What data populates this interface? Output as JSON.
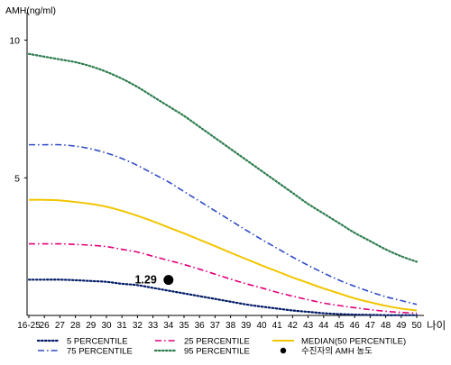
{
  "chart_data": {
    "type": "line",
    "ylabel": "AMH(ng/ml)",
    "xlabel": "나이",
    "ylim": [
      0,
      11
    ],
    "yticks": [
      5,
      10
    ],
    "grid": false,
    "legend_position": "bottom",
    "categories": [
      "16-25",
      "26",
      "27",
      "28",
      "29",
      "30",
      "31",
      "32",
      "33",
      "34",
      "35",
      "36",
      "37",
      "38",
      "39",
      "40",
      "41",
      "42",
      "43",
      "44",
      "45",
      "46",
      "47",
      "48",
      "49",
      "50"
    ],
    "series": [
      {
        "name": "5 PERCENTILE",
        "color": "#001a66",
        "dash": "dotted",
        "values": [
          1.3,
          1.3,
          1.3,
          1.28,
          1.25,
          1.22,
          1.15,
          1.1,
          1.0,
          0.9,
          0.8,
          0.7,
          0.6,
          0.5,
          0.4,
          0.32,
          0.25,
          0.18,
          0.13,
          0.08,
          0.05,
          0.03,
          0.02,
          0.01,
          0.01,
          0.01
        ]
      },
      {
        "name": "25 PERCENTILE",
        "color": "#e0007a",
        "dash": "dashdot",
        "values": [
          2.6,
          2.6,
          2.6,
          2.58,
          2.55,
          2.5,
          2.4,
          2.3,
          2.15,
          2.0,
          1.85,
          1.68,
          1.5,
          1.32,
          1.15,
          1.0,
          0.84,
          0.7,
          0.57,
          0.45,
          0.36,
          0.28,
          0.21,
          0.15,
          0.11,
          0.08
        ]
      },
      {
        "name": "MEDIAN(50 PERCENTILE)",
        "color": "#f2c500",
        "dash": "solid",
        "values": [
          4.2,
          4.2,
          4.18,
          4.12,
          4.05,
          3.95,
          3.8,
          3.62,
          3.42,
          3.2,
          2.98,
          2.75,
          2.52,
          2.28,
          2.05,
          1.82,
          1.6,
          1.38,
          1.18,
          0.98,
          0.8,
          0.62,
          0.48,
          0.35,
          0.25,
          0.18
        ]
      },
      {
        "name": "75 PERCENTILE",
        "color": "#2f4cc4",
        "dash": "dashdot",
        "values": [
          6.2,
          6.2,
          6.2,
          6.15,
          6.05,
          5.9,
          5.7,
          5.45,
          5.15,
          4.85,
          4.5,
          4.15,
          3.8,
          3.45,
          3.1,
          2.76,
          2.44,
          2.12,
          1.82,
          1.54,
          1.28,
          1.06,
          0.86,
          0.68,
          0.54,
          0.4
        ]
      },
      {
        "name": "95 PERCENTILE",
        "color": "#2e7d4f",
        "dash": "dotted",
        "values": [
          9.5,
          9.4,
          9.3,
          9.2,
          9.05,
          8.85,
          8.6,
          8.3,
          7.95,
          7.6,
          7.25,
          6.85,
          6.45,
          6.05,
          5.65,
          5.25,
          4.85,
          4.45,
          4.05,
          3.7,
          3.35,
          3.0,
          2.7,
          2.4,
          2.15,
          1.95
        ]
      }
    ],
    "marker": {
      "name": "수진자의 AMH 농도",
      "x": "34",
      "y": 1.29,
      "label": "1.29",
      "color": "#000000"
    },
    "legend": [
      {
        "name": "5 PERCENTILE",
        "color": "#001a66",
        "dash": "dotted"
      },
      {
        "name": "25 PERCENTILE",
        "color": "#e0007a",
        "dash": "dashdot"
      },
      {
        "name": "MEDIAN(50 PERCENTILE)",
        "color": "#f2c500",
        "dash": "solid"
      },
      {
        "name": "75 PERCENTILE",
        "color": "#2f4cc4",
        "dash": "dashdot"
      },
      {
        "name": "95 PERCENTILE",
        "color": "#2e7d4f",
        "dash": "dotted"
      },
      {
        "name": "수진자의 AMH 농도",
        "color": "#000000",
        "dash": "marker"
      }
    ]
  }
}
